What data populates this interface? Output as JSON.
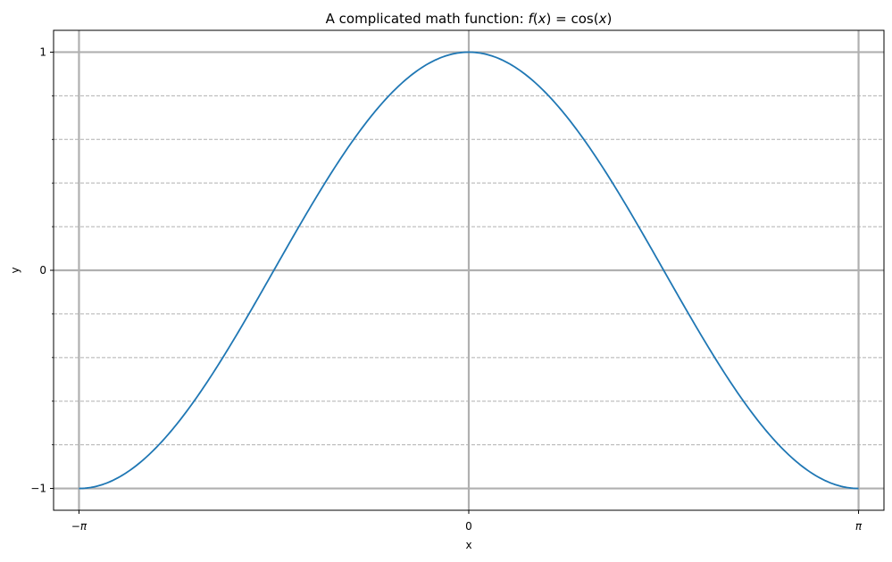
{
  "chart_data": {
    "type": "line",
    "title": {
      "prefix": "A complicated math function: ",
      "math": [
        {
          "t": "f",
          "i": true
        },
        {
          "t": "(",
          "i": false
        },
        {
          "t": "x",
          "i": true
        },
        {
          "t": ") = cos(",
          "i": false
        },
        {
          "t": "x",
          "i": true
        },
        {
          "t": ")",
          "i": false
        }
      ]
    },
    "xlabel": "x",
    "ylabel": "y",
    "xlim": [
      -3.3464,
      3.3464
    ],
    "ylim": [
      -1.1,
      1.1
    ],
    "x_range": [
      -3.14159,
      3.14159
    ],
    "x_ticks": [
      {
        "value": -3.14159,
        "parts": [
          {
            "t": "−",
            "i": false
          },
          {
            "t": "π",
            "i": true
          }
        ]
      },
      {
        "value": 0,
        "parts": [
          {
            "t": "0",
            "i": false
          }
        ]
      },
      {
        "value": 3.14159,
        "parts": [
          {
            "t": "π",
            "i": true
          }
        ]
      }
    ],
    "y_ticks": [
      {
        "value": 1,
        "label": "1"
      },
      {
        "value": 0,
        "label": "0"
      },
      {
        "value": -1,
        "label": "−1"
      }
    ],
    "y_minor_ticks": [
      -0.8,
      -0.6,
      -0.4,
      -0.2,
      0.2,
      0.4,
      0.6,
      0.8
    ],
    "grid": {
      "major": true,
      "minor_y": true
    },
    "series": [
      {
        "function": "cos(x)",
        "color": "#1f77b4"
      }
    ],
    "colors": {
      "major_grid": "#b0b0b0",
      "minor_grid": "#b0b0b0",
      "axes": "#000000"
    }
  }
}
